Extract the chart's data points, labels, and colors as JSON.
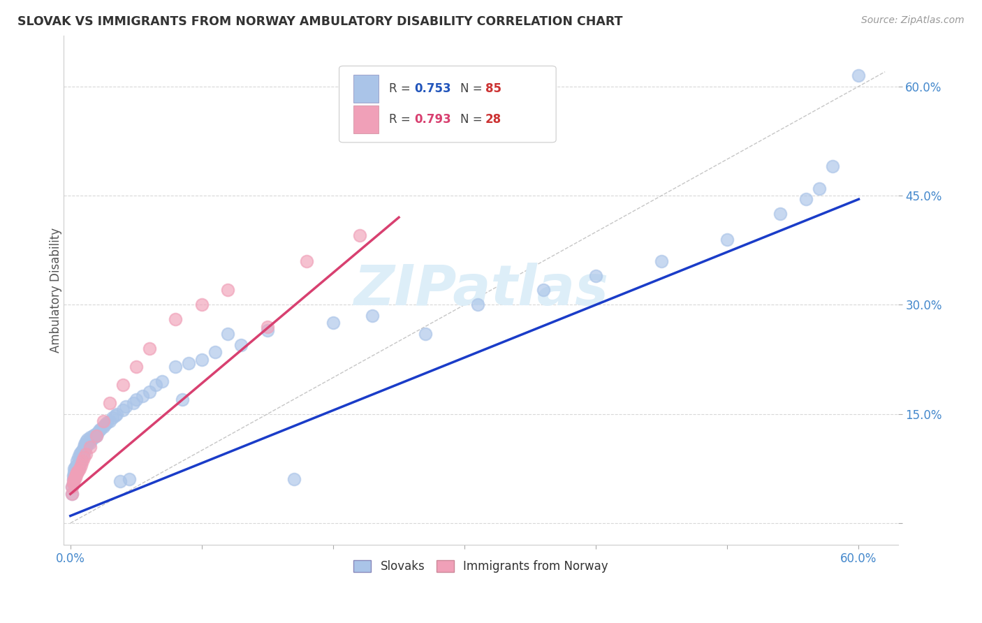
{
  "title": "SLOVAK VS IMMIGRANTS FROM NORWAY AMBULATORY DISABILITY CORRELATION CHART",
  "source": "Source: ZipAtlas.com",
  "ylabel": "Ambulatory Disability",
  "xlim": [
    -0.005,
    0.63
  ],
  "ylim": [
    -0.03,
    0.67
  ],
  "xtick_values": [
    0.0,
    0.1,
    0.2,
    0.3,
    0.4,
    0.5,
    0.6
  ],
  "ytick_values": [
    0.0,
    0.15,
    0.3,
    0.45,
    0.6
  ],
  "slovak_R": 0.753,
  "slovak_N": 85,
  "norway_R": 0.793,
  "norway_N": 28,
  "slovak_color": "#aac4e8",
  "norway_color": "#f0a0b8",
  "slovak_line_color": "#1a3cc8",
  "norway_line_color": "#d84070",
  "diagonal_color": "#c0c0c0",
  "background_color": "#ffffff",
  "grid_color": "#d8d8d8",
  "watermark": "ZIPatlas",
  "watermark_color": "#ddeef8",
  "legend_R_color": "#2255bb",
  "legend_N_color": "#cc3333",
  "slovak_x": [
    0.001,
    0.001,
    0.002,
    0.002,
    0.002,
    0.003,
    0.003,
    0.003,
    0.003,
    0.004,
    0.004,
    0.004,
    0.005,
    0.005,
    0.005,
    0.005,
    0.006,
    0.006,
    0.006,
    0.007,
    0.007,
    0.007,
    0.008,
    0.008,
    0.008,
    0.009,
    0.009,
    0.01,
    0.01,
    0.011,
    0.011,
    0.012,
    0.012,
    0.013,
    0.013,
    0.014,
    0.015,
    0.015,
    0.016,
    0.017,
    0.018,
    0.019,
    0.02,
    0.021,
    0.022,
    0.023,
    0.025,
    0.026,
    0.028,
    0.03,
    0.032,
    0.034,
    0.035,
    0.038,
    0.04,
    0.042,
    0.045,
    0.048,
    0.05,
    0.055,
    0.06,
    0.065,
    0.07,
    0.08,
    0.085,
    0.09,
    0.1,
    0.11,
    0.12,
    0.13,
    0.15,
    0.17,
    0.2,
    0.23,
    0.27,
    0.31,
    0.36,
    0.4,
    0.45,
    0.5,
    0.54,
    0.56,
    0.57,
    0.58,
    0.6
  ],
  "slovak_y": [
    0.04,
    0.05,
    0.055,
    0.06,
    0.065,
    0.06,
    0.065,
    0.07,
    0.075,
    0.068,
    0.072,
    0.078,
    0.07,
    0.075,
    0.08,
    0.085,
    0.075,
    0.08,
    0.09,
    0.082,
    0.088,
    0.095,
    0.085,
    0.09,
    0.098,
    0.092,
    0.1,
    0.095,
    0.105,
    0.1,
    0.108,
    0.105,
    0.112,
    0.108,
    0.115,
    0.112,
    0.11,
    0.118,
    0.115,
    0.12,
    0.118,
    0.122,
    0.12,
    0.125,
    0.128,
    0.13,
    0.132,
    0.135,
    0.138,
    0.14,
    0.145,
    0.148,
    0.15,
    0.058,
    0.155,
    0.16,
    0.06,
    0.165,
    0.17,
    0.175,
    0.18,
    0.19,
    0.195,
    0.215,
    0.17,
    0.22,
    0.225,
    0.235,
    0.26,
    0.245,
    0.265,
    0.06,
    0.275,
    0.285,
    0.26,
    0.3,
    0.32,
    0.34,
    0.36,
    0.39,
    0.425,
    0.445,
    0.46,
    0.49,
    0.615
  ],
  "norway_x": [
    0.001,
    0.001,
    0.002,
    0.002,
    0.003,
    0.004,
    0.004,
    0.005,
    0.005,
    0.006,
    0.007,
    0.008,
    0.009,
    0.01,
    0.012,
    0.015,
    0.02,
    0.025,
    0.03,
    0.04,
    0.05,
    0.06,
    0.08,
    0.1,
    0.12,
    0.15,
    0.18,
    0.22
  ],
  "norway_y": [
    0.04,
    0.05,
    0.055,
    0.058,
    0.06,
    0.062,
    0.065,
    0.068,
    0.07,
    0.072,
    0.075,
    0.08,
    0.085,
    0.09,
    0.095,
    0.105,
    0.12,
    0.14,
    0.165,
    0.19,
    0.215,
    0.24,
    0.28,
    0.3,
    0.32,
    0.27,
    0.36,
    0.395
  ],
  "slovak_line_x": [
    0.0,
    0.6
  ],
  "slovak_line_y": [
    0.01,
    0.445
  ],
  "norway_line_x": [
    0.0,
    0.25
  ],
  "norway_line_y": [
    0.04,
    0.42
  ]
}
